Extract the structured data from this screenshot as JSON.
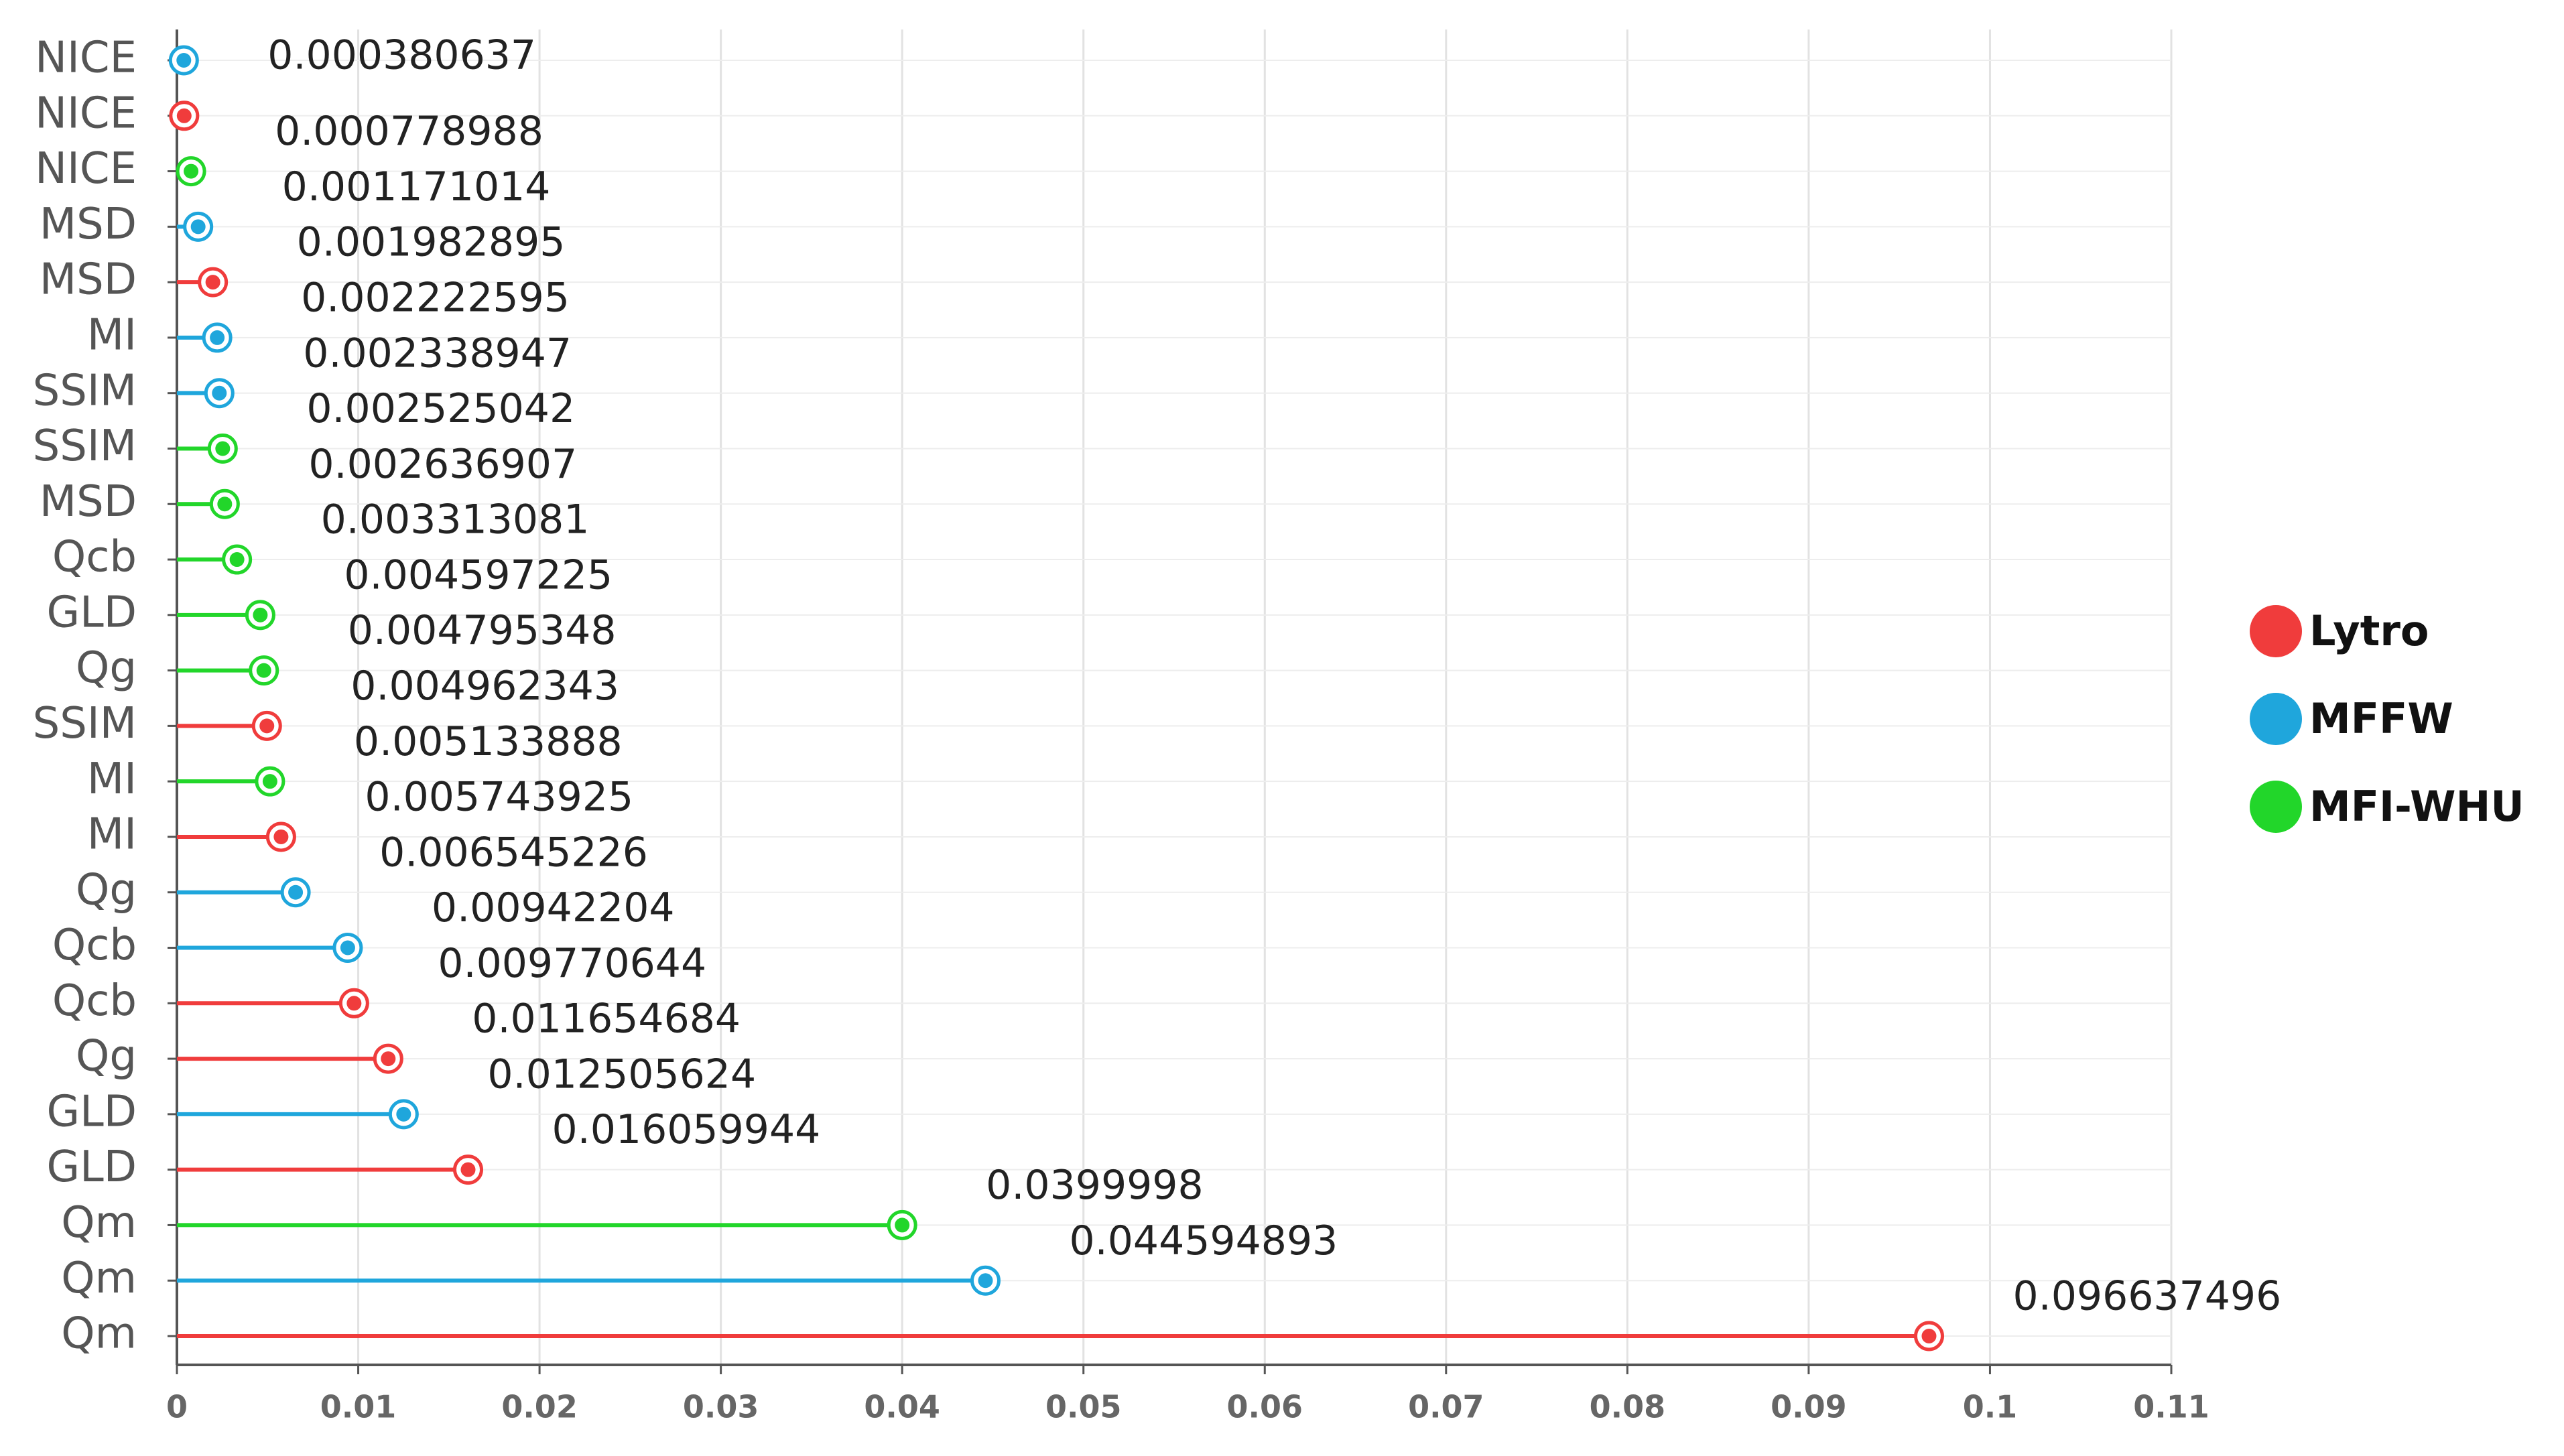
{
  "chart_data": {
    "type": "lollipop",
    "orientation": "horizontal",
    "categories": [
      "NICE",
      "NICE",
      "NICE",
      "MSD",
      "MSD",
      "MI",
      "SSIM",
      "SSIM",
      "MSD",
      "Qcb",
      "GLD",
      "Qg",
      "SSIM",
      "MI",
      "MI",
      "Qg",
      "Qcb",
      "Qcb",
      "Qg",
      "GLD",
      "GLD",
      "Qm",
      "Qm",
      "Qm"
    ],
    "series": [
      {
        "name": "Lytro",
        "color": "#f03c3c",
        "values": [
          null,
          0.0004,
          null,
          null,
          0.001982895,
          null,
          null,
          null,
          null,
          null,
          null,
          null,
          0.004962343,
          null,
          0.005743925,
          null,
          null,
          0.009770644,
          0.011654684,
          null,
          0.016059944,
          null,
          null,
          0.096637496
        ],
        "value_labels": [
          null,
          null,
          null,
          null,
          "0.001982895",
          null,
          null,
          null,
          null,
          null,
          null,
          null,
          "0.004962343",
          null,
          "0.005743925",
          null,
          null,
          "0.009770644",
          "0.011654684",
          null,
          "0.016059944",
          null,
          null,
          "0.096637496"
        ]
      },
      {
        "name": "MFFW",
        "color": "#1fa6dc",
        "values": [
          0.000380637,
          null,
          null,
          0.001171014,
          null,
          0.002222595,
          0.002338947,
          null,
          null,
          null,
          null,
          null,
          null,
          null,
          null,
          0.006545226,
          0.00942204,
          null,
          null,
          0.012505624,
          null,
          null,
          0.044594893,
          null
        ],
        "value_labels": [
          "0.000380637",
          null,
          null,
          "0.001171014",
          null,
          "0.002222595",
          "0.002338947",
          null,
          null,
          null,
          null,
          null,
          null,
          null,
          null,
          "0.006545226",
          "0.00942204",
          null,
          null,
          "0.012505624",
          null,
          null,
          "0.044594893",
          null
        ]
      },
      {
        "name": "MFI-WHU",
        "color": "#22d62a",
        "values": [
          null,
          null,
          0.000778988,
          null,
          null,
          null,
          null,
          0.002525042,
          0.002636907,
          0.003313081,
          0.004597225,
          0.004795348,
          null,
          0.005133888,
          null,
          null,
          null,
          null,
          null,
          null,
          null,
          0.0399998,
          null,
          null
        ],
        "value_labels": [
          null,
          null,
          "0.000778988",
          null,
          null,
          null,
          null,
          "0.002525042",
          "0.002636907",
          "0.003313081",
          "0.004597225",
          "0.004795348",
          null,
          "0.005133888",
          null,
          null,
          null,
          null,
          null,
          null,
          null,
          "0.0399998",
          null,
          null
        ]
      }
    ],
    "xlim": [
      0,
      0.11
    ],
    "xticks": [
      0,
      0.01,
      0.02,
      0.03,
      0.04,
      0.05,
      0.06,
      0.07,
      0.08,
      0.09,
      0.1,
      0.11
    ],
    "grid": true,
    "legend": "right"
  }
}
